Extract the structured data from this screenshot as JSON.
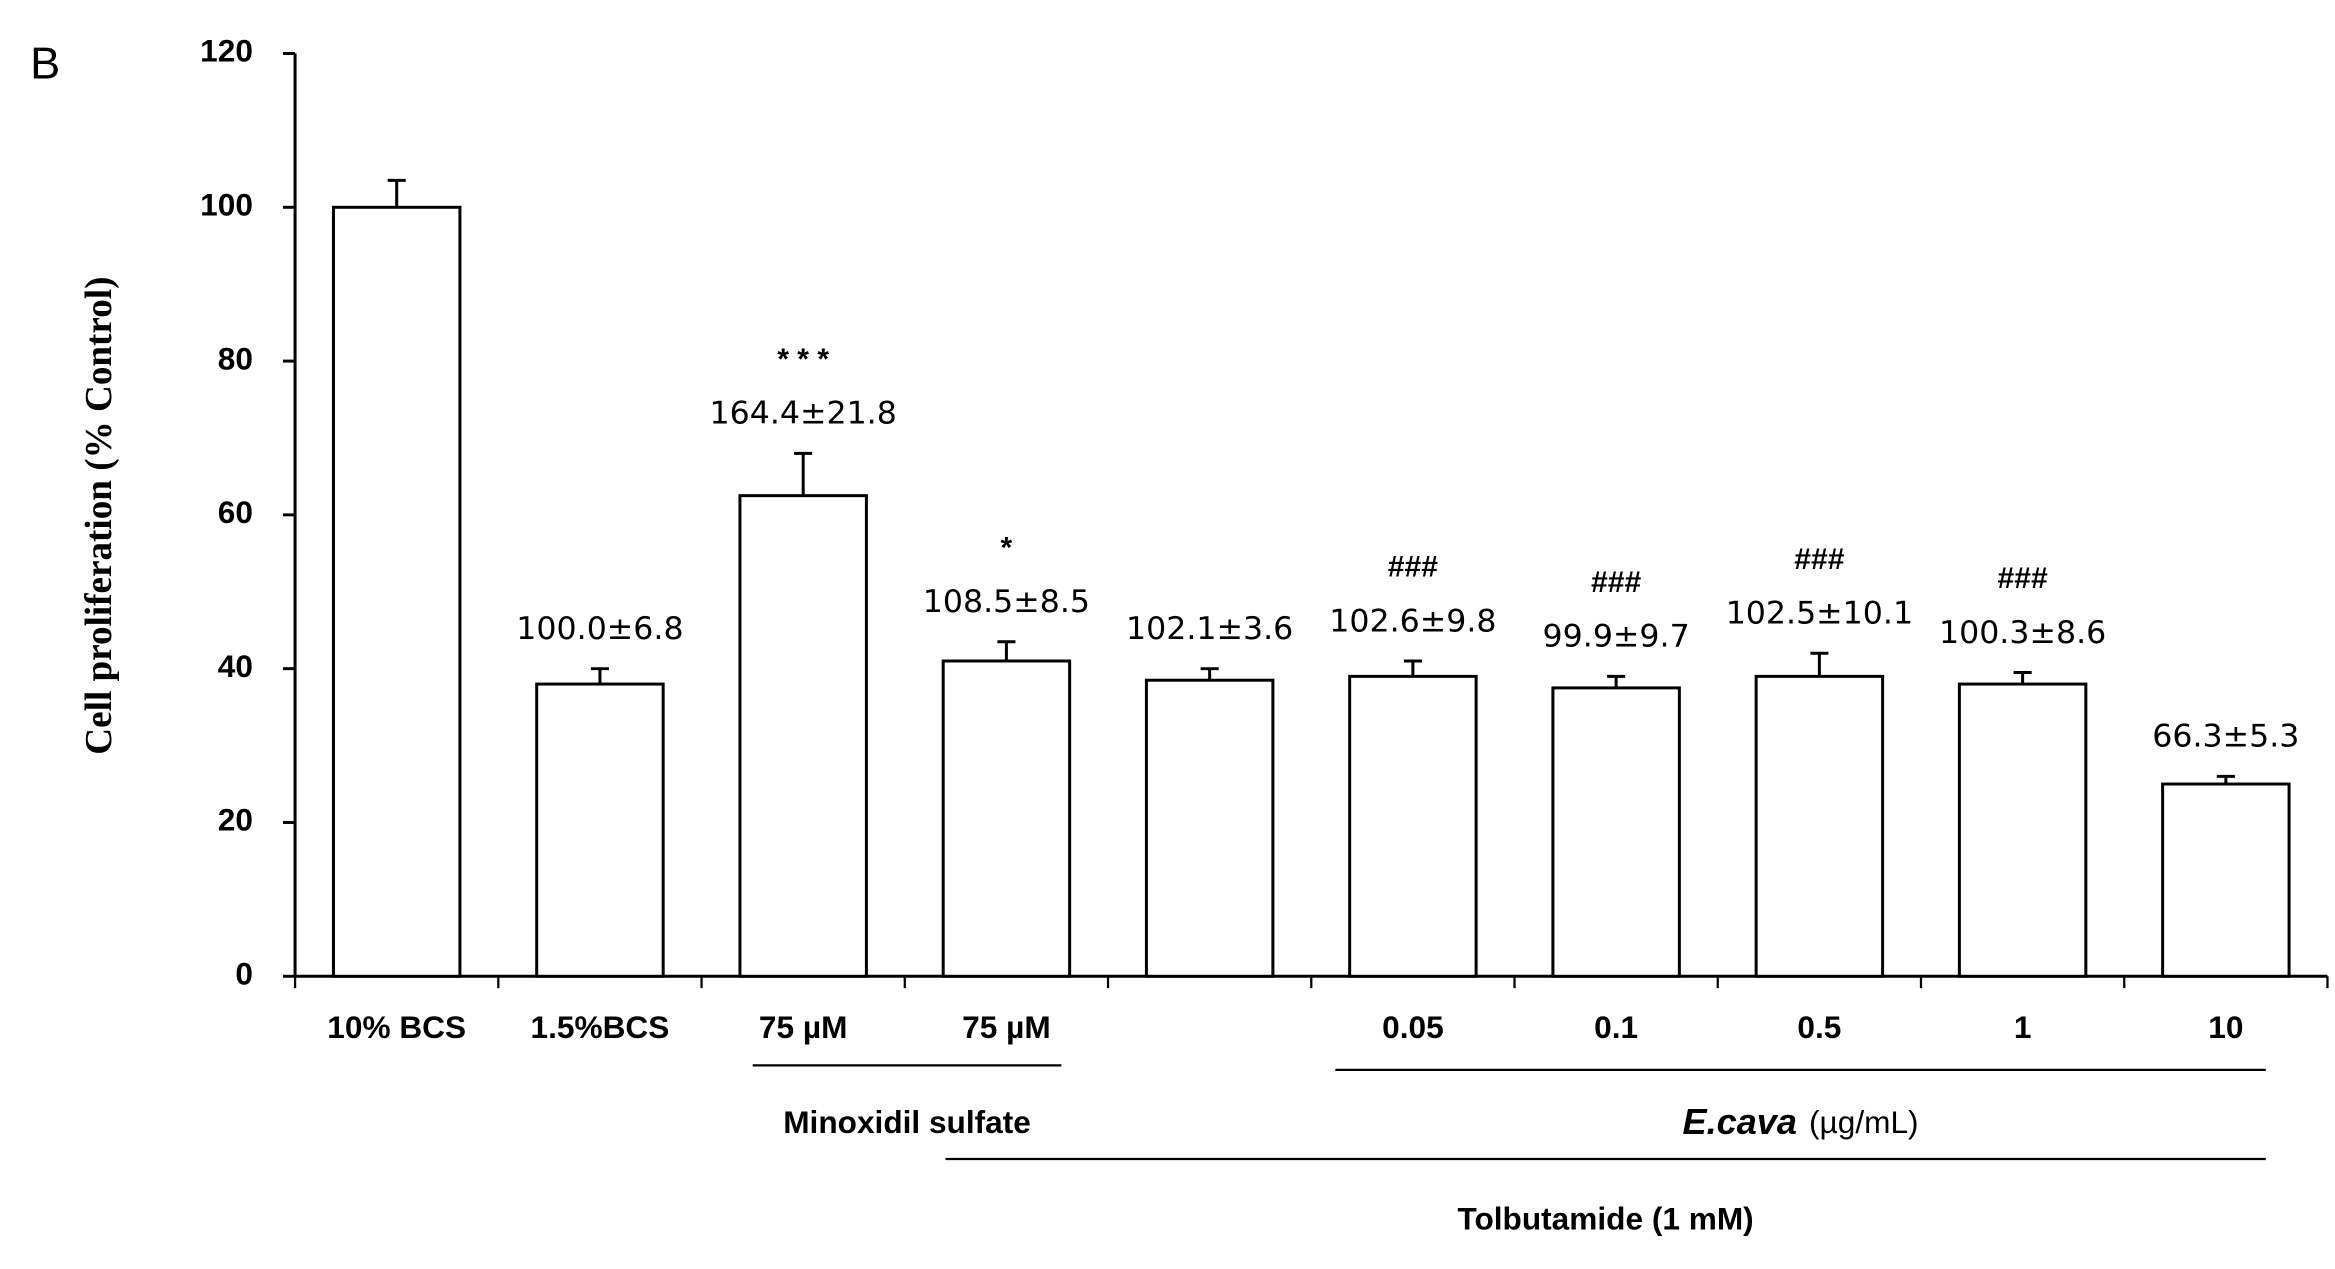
{
  "chart_data": {
    "type": "bar",
    "panel_label": "B",
    "y_label": "Cell proliferation (% Control)",
    "categories": [
      "10% BCS",
      "1.5%BCS",
      "75 µM",
      "75 µM",
      null,
      "0.05",
      "0.1",
      "0.5",
      "1",
      "10"
    ],
    "values": [
      100,
      38,
      62.5,
      41,
      38.5,
      39,
      37.5,
      39,
      38,
      25
    ],
    "errors": [
      3.5,
      2,
      5.5,
      2.5,
      1.5,
      2,
      1.5,
      3,
      1.5,
      1
    ],
    "annotations": [
      null,
      "100.0±6.8",
      "164.4±21.8",
      "108.5±8.5",
      "102.1±3.6",
      "102.6±9.8",
      "99.9±9.7",
      "102.5±10.1",
      "100.3±8.6",
      "66.3±5.3"
    ],
    "significance": [
      null,
      null,
      "* * *",
      "*",
      null,
      "###",
      "###",
      "###",
      "###",
      null
    ],
    "groups": [
      {
        "label": "Minoxidil sulfate"
      },
      {
        "label": "E.cava",
        "unit": "(µg/mL)"
      },
      {
        "label": "Tolbutamide (1 mM)"
      }
    ],
    "color": "#ffffff",
    "ylim": [
      0,
      120
    ],
    "yticks": [
      0,
      20,
      40,
      60,
      80,
      100,
      120
    ]
  }
}
